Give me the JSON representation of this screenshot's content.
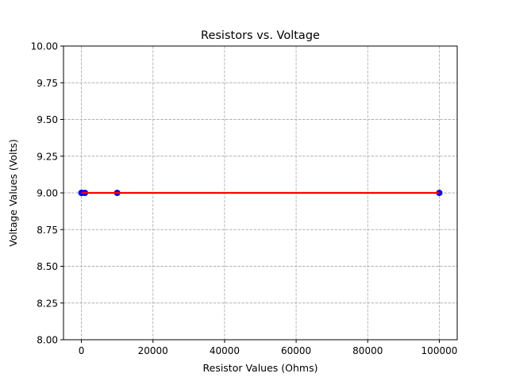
{
  "chart_data": {
    "type": "scatter",
    "title": "Resistors vs. Voltage",
    "xlabel": "Resistor Values (Ohms)",
    "ylabel": "Voltage Values (Volts)",
    "xlim": [
      -5000,
      105000
    ],
    "ylim": [
      8.0,
      10.0
    ],
    "xticks": [
      0,
      20000,
      40000,
      60000,
      80000,
      100000
    ],
    "xtick_labels": [
      "0",
      "20000",
      "40000",
      "60000",
      "80000",
      "100000"
    ],
    "yticks": [
      8.0,
      8.25,
      8.5,
      8.75,
      9.0,
      9.25,
      9.5,
      9.75,
      10.0
    ],
    "ytick_labels": [
      "8.00",
      "8.25",
      "8.50",
      "8.75",
      "9.00",
      "9.25",
      "9.50",
      "9.75",
      "10.00"
    ],
    "grid": true,
    "series": [
      {
        "kind": "scatter",
        "color": "#0000ff",
        "x": [
          10,
          100,
          1000,
          10000,
          100000
        ],
        "y": [
          9.0,
          9.0,
          9.0,
          9.0,
          9.0
        ]
      },
      {
        "kind": "line",
        "color": "#ff0000",
        "x": [
          10,
          100,
          1000,
          10000,
          100000
        ],
        "y": [
          9.0,
          9.0,
          9.0,
          9.0,
          9.0
        ]
      }
    ]
  }
}
